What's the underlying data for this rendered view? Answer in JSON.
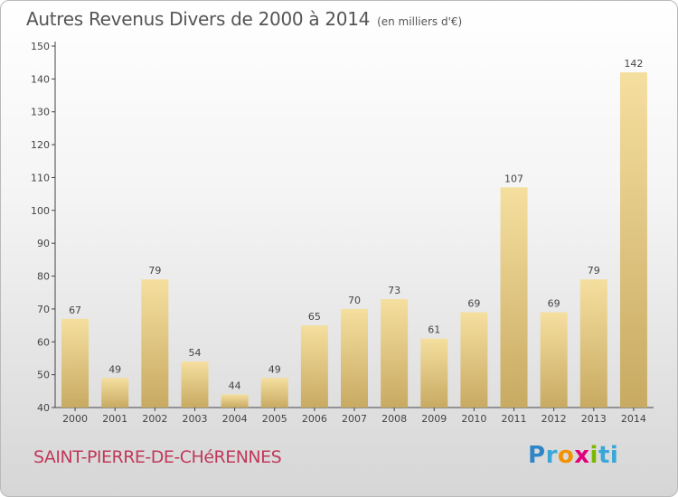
{
  "title": "Autres Revenus Divers de 2000 à 2014",
  "unit": "(en milliers d'€)",
  "commune": "SAINT-PIERRE-DE-CHéRENNES",
  "logo": {
    "text": "Proxiti",
    "letters": [
      "P",
      "r",
      "o",
      "x",
      "i",
      "ti"
    ]
  },
  "colors": {
    "bar_top": "#f5df9f",
    "bar_bottom": "#c8aa62",
    "commune": "#c0395b",
    "text": "#555555"
  },
  "chart_data": {
    "type": "bar",
    "title": "Autres Revenus Divers de 2000 à 2014",
    "subtitle": "(en milliers d'€)",
    "categories": [
      "2000",
      "2001",
      "2002",
      "2003",
      "2004",
      "2005",
      "2006",
      "2007",
      "2008",
      "2009",
      "2010",
      "2011",
      "2012",
      "2013",
      "2014"
    ],
    "values": [
      67,
      49,
      79,
      54,
      44,
      49,
      65,
      70,
      73,
      61,
      69,
      107,
      69,
      79,
      142
    ],
    "ylim": [
      40,
      150
    ],
    "yticks": [
      40,
      50,
      60,
      70,
      80,
      90,
      100,
      110,
      120,
      130,
      140,
      150
    ],
    "grid": false,
    "data_labels": true
  }
}
